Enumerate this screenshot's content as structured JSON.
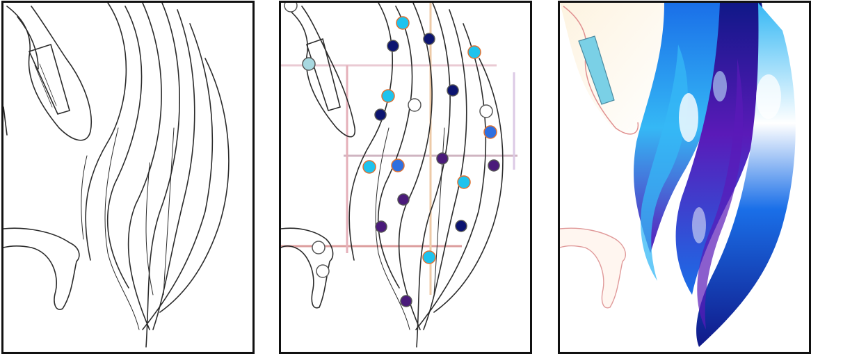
{
  "panels": [
    {
      "id": "sketch",
      "kind": "line-art"
    },
    {
      "id": "hints",
      "kind": "line-art-with-color-hints"
    },
    {
      "id": "colorized",
      "kind": "colorized-result"
    }
  ],
  "colors": {
    "frame": "#111111",
    "line": "#2b2b2b",
    "hint_cyan": "#1ec3ee",
    "hint_navy": "#0c1470",
    "hint_blue": "#2f6fe0",
    "hint_purple": "#4a1a7a",
    "hint_white": "#ffffff",
    "hint_lightblue": "#a8d8e0",
    "hair_blue": "#1a6fe8",
    "hair_cyan": "#35b8f5",
    "hair_purple": "#5a1ab8",
    "hair_navy": "#101888",
    "skin": "#fbecd6",
    "ear_cyan": "#7ad0e6"
  }
}
